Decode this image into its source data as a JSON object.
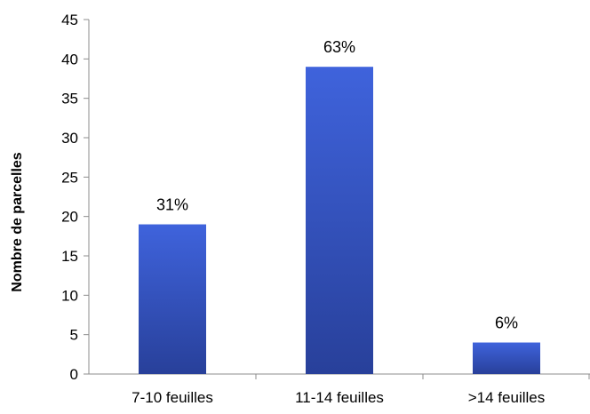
{
  "chart_data": {
    "type": "bar",
    "title": "",
    "xlabel": "",
    "ylabel": "Nombre de parcelles",
    "categories": [
      "7-10 feuilles",
      "11-14 feuilles",
      ">14 feuilles"
    ],
    "values": [
      19,
      39,
      4
    ],
    "data_labels": [
      "31%",
      "63%",
      "6%"
    ],
    "ylim": [
      0,
      45
    ],
    "yticks": [
      0,
      5,
      10,
      15,
      20,
      25,
      30,
      35,
      40,
      45
    ],
    "grid": false,
    "legend": "none",
    "colors": {
      "bar_top": "#3f63dc",
      "bar_bottom": "#28409a",
      "axis": "#8c8c8c"
    }
  }
}
